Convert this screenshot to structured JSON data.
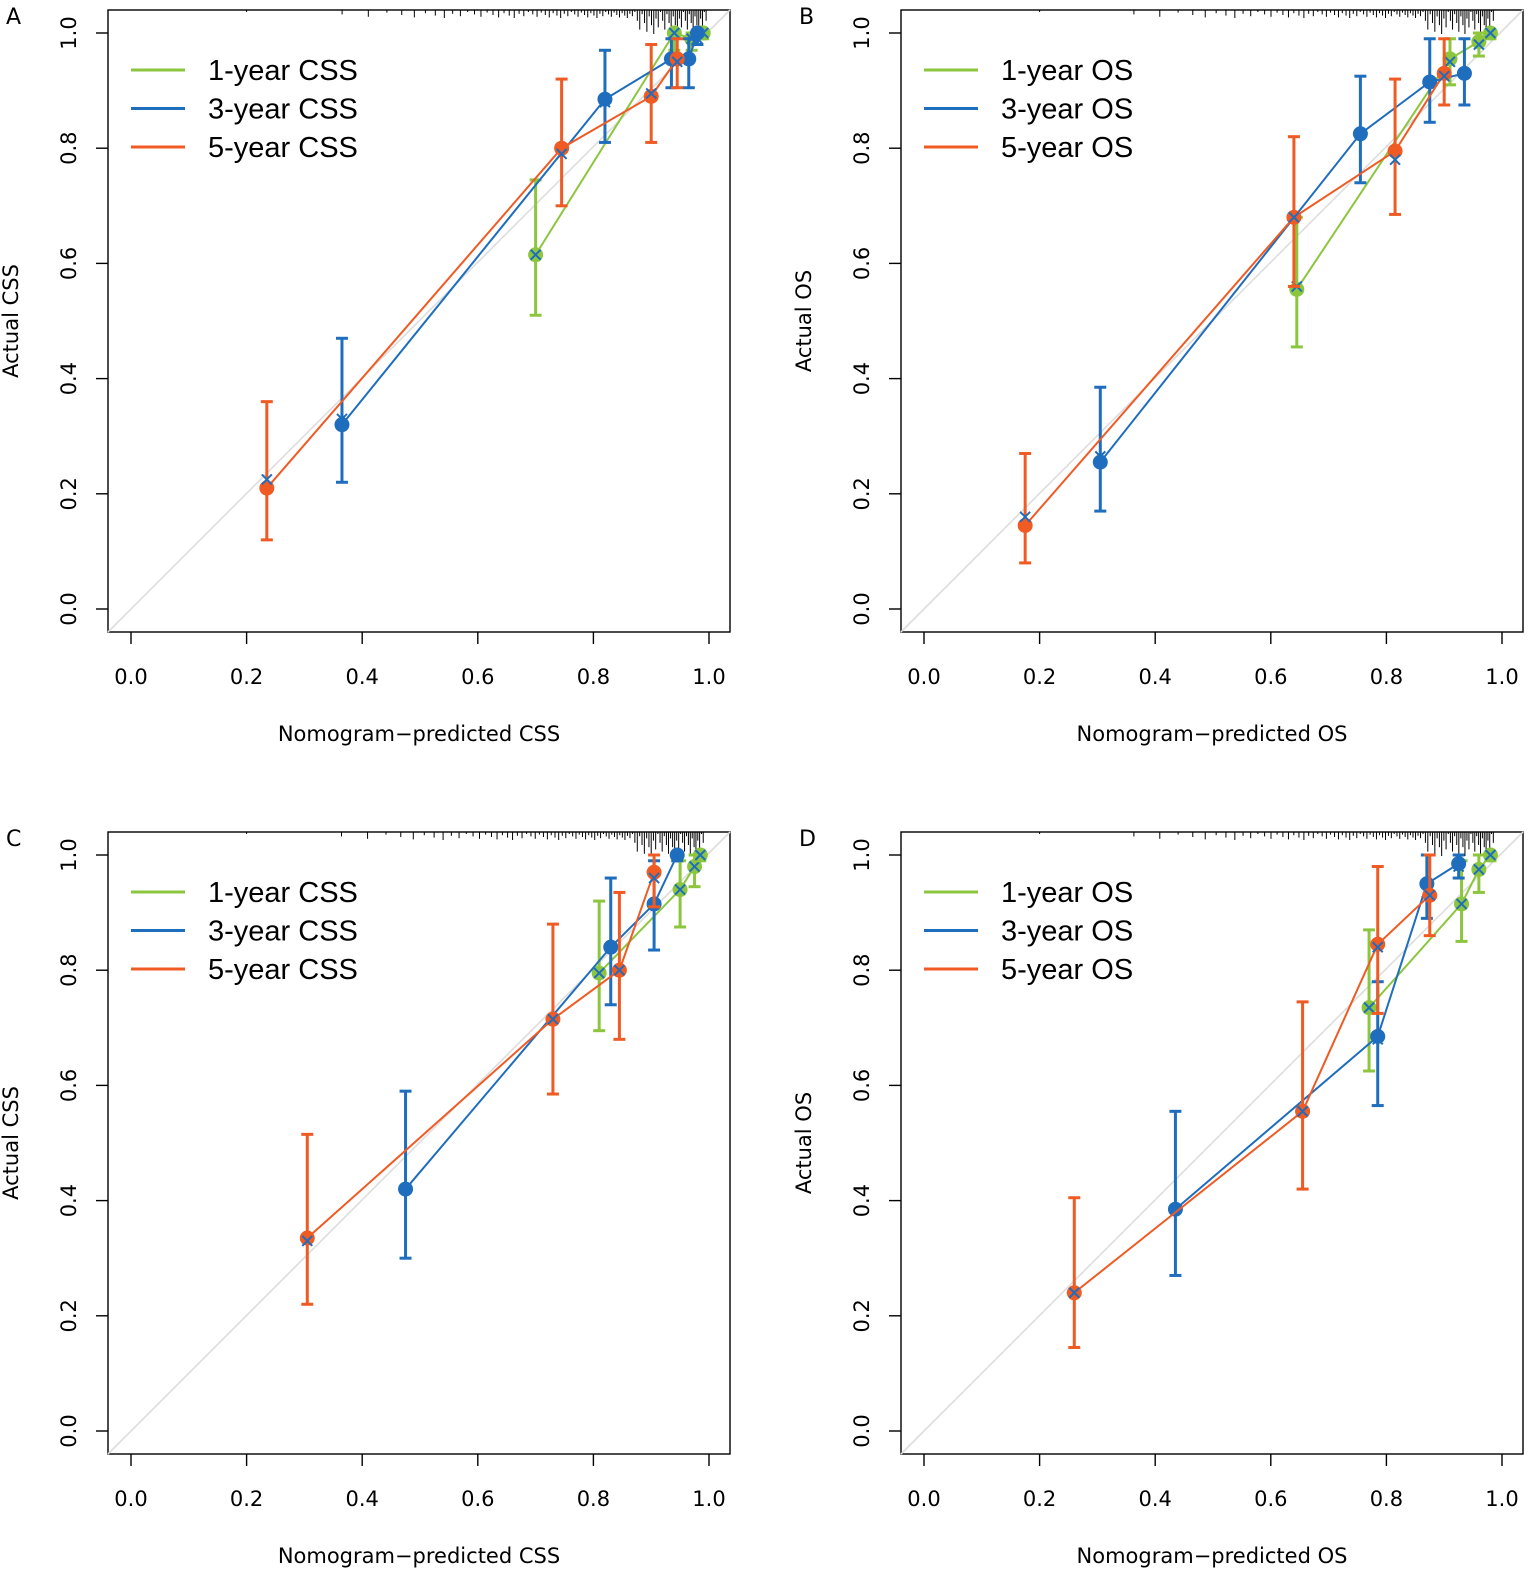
{
  "figure": {
    "colors": {
      "green": "#8cc63f",
      "blue": "#1f6dbd",
      "red": "#f05a23",
      "diagonal": "#dddddd",
      "axis": "#000000"
    }
  },
  "chart_data": [
    {
      "panel_label": "A",
      "type": "line",
      "xlabel": "Nomogram−predicted CSS",
      "ylabel": "Actual CSS",
      "xlim": [
        0.0,
        1.0
      ],
      "ylim": [
        0.0,
        1.0
      ],
      "x_ticks": [
        "0.0",
        "0.2",
        "0.4",
        "0.6",
        "0.8",
        "1.0"
      ],
      "y_ticks": [
        "0.0",
        "0.2",
        "0.4",
        "0.6",
        "0.8",
        "1.0"
      ],
      "legend_position": "top-left",
      "series": [
        {
          "name": "1-year CSS",
          "color": "green",
          "x": [
            0.7,
            0.94,
            0.97,
            0.985,
            0.99
          ],
          "y": [
            0.615,
            1.0,
            0.99,
            1.0,
            1.0
          ],
          "lower": [
            0.51,
            0.97,
            0.97,
            0.99,
            0.99
          ],
          "upper": [
            0.745,
            1.0,
            1.0,
            1.0,
            1.0
          ],
          "corrected": [
            0.615,
            1.0,
            0.99,
            1.0,
            1.0
          ]
        },
        {
          "name": "3-year CSS",
          "color": "blue",
          "x": [
            0.365,
            0.82,
            0.935,
            0.965,
            0.98
          ],
          "y": [
            0.32,
            0.885,
            0.955,
            0.955,
            1.0
          ],
          "lower": [
            0.22,
            0.81,
            0.905,
            0.905,
            0.98
          ],
          "upper": [
            0.47,
            0.97,
            0.99,
            0.99,
            1.0
          ],
          "corrected": [
            0.33,
            0.88,
            0.955,
            0.955,
            0.99
          ]
        },
        {
          "name": "5-year CSS",
          "color": "red",
          "x": [
            0.235,
            0.745,
            0.9,
            0.945
          ],
          "y": [
            0.21,
            0.8,
            0.89,
            0.955
          ],
          "lower": [
            0.12,
            0.7,
            0.81,
            0.905
          ],
          "upper": [
            0.36,
            0.92,
            0.98,
            0.99
          ],
          "corrected": [
            0.225,
            0.79,
            0.895,
            0.95
          ]
        }
      ]
    },
    {
      "panel_label": "B",
      "type": "line",
      "xlabel": "Nomogram−predicted OS",
      "ylabel": "Actual OS",
      "xlim": [
        0.0,
        1.0
      ],
      "ylim": [
        0.0,
        1.0
      ],
      "x_ticks": [
        "0.0",
        "0.2",
        "0.4",
        "0.6",
        "0.8",
        "1.0"
      ],
      "y_ticks": [
        "0.0",
        "0.2",
        "0.4",
        "0.6",
        "0.8",
        "1.0"
      ],
      "legend_position": "top-left",
      "series": [
        {
          "name": "1-year OS",
          "color": "green",
          "x": [
            0.645,
            0.91,
            0.96,
            0.98
          ],
          "y": [
            0.555,
            0.955,
            0.985,
            1.0
          ],
          "lower": [
            0.455,
            0.91,
            0.96,
            0.99
          ],
          "upper": [
            0.68,
            0.99,
            1.0,
            1.0
          ],
          "corrected": [
            0.56,
            0.95,
            0.98,
            1.0
          ]
        },
        {
          "name": "3-year OS",
          "color": "blue",
          "x": [
            0.305,
            0.755,
            0.875,
            0.935
          ],
          "y": [
            0.255,
            0.825,
            0.915,
            0.93
          ],
          "lower": [
            0.17,
            0.74,
            0.845,
            0.875
          ],
          "upper": [
            0.385,
            0.925,
            0.99,
            0.99
          ],
          "corrected": [
            0.265,
            0.825,
            0.915,
            0.93
          ]
        },
        {
          "name": "5-year OS",
          "color": "red",
          "x": [
            0.175,
            0.64,
            0.815,
            0.9
          ],
          "y": [
            0.145,
            0.68,
            0.795,
            0.93
          ],
          "lower": [
            0.08,
            0.56,
            0.685,
            0.875
          ],
          "upper": [
            0.27,
            0.82,
            0.92,
            0.99
          ],
          "corrected": [
            0.16,
            0.68,
            0.78,
            0.925
          ]
        }
      ]
    },
    {
      "panel_label": "C",
      "type": "line",
      "xlabel": "Nomogram−predicted CSS",
      "ylabel": "Actual CSS",
      "xlim": [
        0.0,
        1.0
      ],
      "ylim": [
        0.0,
        1.0
      ],
      "x_ticks": [
        "0.0",
        "0.2",
        "0.4",
        "0.6",
        "0.8",
        "1.0"
      ],
      "y_ticks": [
        "0.0",
        "0.2",
        "0.4",
        "0.6",
        "0.8",
        "1.0"
      ],
      "legend_position": "top-left",
      "series": [
        {
          "name": "1-year CSS",
          "color": "green",
          "x": [
            0.81,
            0.95,
            0.975,
            0.985
          ],
          "y": [
            0.795,
            0.94,
            0.98,
            1.0
          ],
          "lower": [
            0.695,
            0.875,
            0.945,
            0.99
          ],
          "upper": [
            0.92,
            0.99,
            1.0,
            1.0
          ],
          "corrected": [
            0.795,
            0.94,
            0.98,
            1.0
          ]
        },
        {
          "name": "3-year CSS",
          "color": "blue",
          "x": [
            0.475,
            0.83,
            0.905,
            0.945
          ],
          "y": [
            0.42,
            0.84,
            0.915,
            1.0
          ],
          "lower": [
            0.3,
            0.74,
            0.835,
            0.99
          ],
          "upper": [
            0.59,
            0.96,
            0.99,
            1.0
          ],
          "corrected": [
            0.42,
            0.84,
            0.915,
            1.0
          ]
        },
        {
          "name": "5-year CSS",
          "color": "red",
          "x": [
            0.305,
            0.73,
            0.845,
            0.905
          ],
          "y": [
            0.335,
            0.715,
            0.8,
            0.97
          ],
          "lower": [
            0.22,
            0.585,
            0.68,
            0.91
          ],
          "upper": [
            0.515,
            0.88,
            0.935,
            1.0
          ],
          "corrected": [
            0.33,
            0.715,
            0.8,
            0.96
          ]
        }
      ]
    },
    {
      "panel_label": "D",
      "type": "line",
      "xlabel": "Nomogram−predicted OS",
      "ylabel": "Actual OS",
      "xlim": [
        0.0,
        1.0
      ],
      "ylim": [
        0.0,
        1.0
      ],
      "x_ticks": [
        "0.0",
        "0.2",
        "0.4",
        "0.6",
        "0.8",
        "1.0"
      ],
      "y_ticks": [
        "0.0",
        "0.2",
        "0.4",
        "0.6",
        "0.8",
        "1.0"
      ],
      "legend_position": "top-left",
      "series": [
        {
          "name": "1-year OS",
          "color": "green",
          "x": [
            0.77,
            0.93,
            0.96,
            0.98
          ],
          "y": [
            0.735,
            0.915,
            0.975,
            1.0
          ],
          "lower": [
            0.625,
            0.85,
            0.935,
            0.99
          ],
          "upper": [
            0.87,
            0.99,
            1.0,
            1.0
          ],
          "corrected": [
            0.735,
            0.915,
            0.975,
            1.0
          ]
        },
        {
          "name": "3-year OS",
          "color": "blue",
          "x": [
            0.435,
            0.785,
            0.87,
            0.925
          ],
          "y": [
            0.385,
            0.685,
            0.95,
            0.985
          ],
          "lower": [
            0.27,
            0.565,
            0.89,
            0.96
          ],
          "upper": [
            0.555,
            0.78,
            1.0,
            1.0
          ],
          "corrected": [
            0.385,
            0.68,
            0.935,
            0.98
          ]
        },
        {
          "name": "5-year OS",
          "color": "red",
          "x": [
            0.26,
            0.655,
            0.785,
            0.875
          ],
          "y": [
            0.24,
            0.555,
            0.845,
            0.93
          ],
          "lower": [
            0.145,
            0.42,
            0.725,
            0.86
          ],
          "upper": [
            0.405,
            0.745,
            0.98,
            1.0
          ],
          "corrected": [
            0.24,
            0.555,
            0.84,
            0.93
          ]
        }
      ]
    }
  ]
}
